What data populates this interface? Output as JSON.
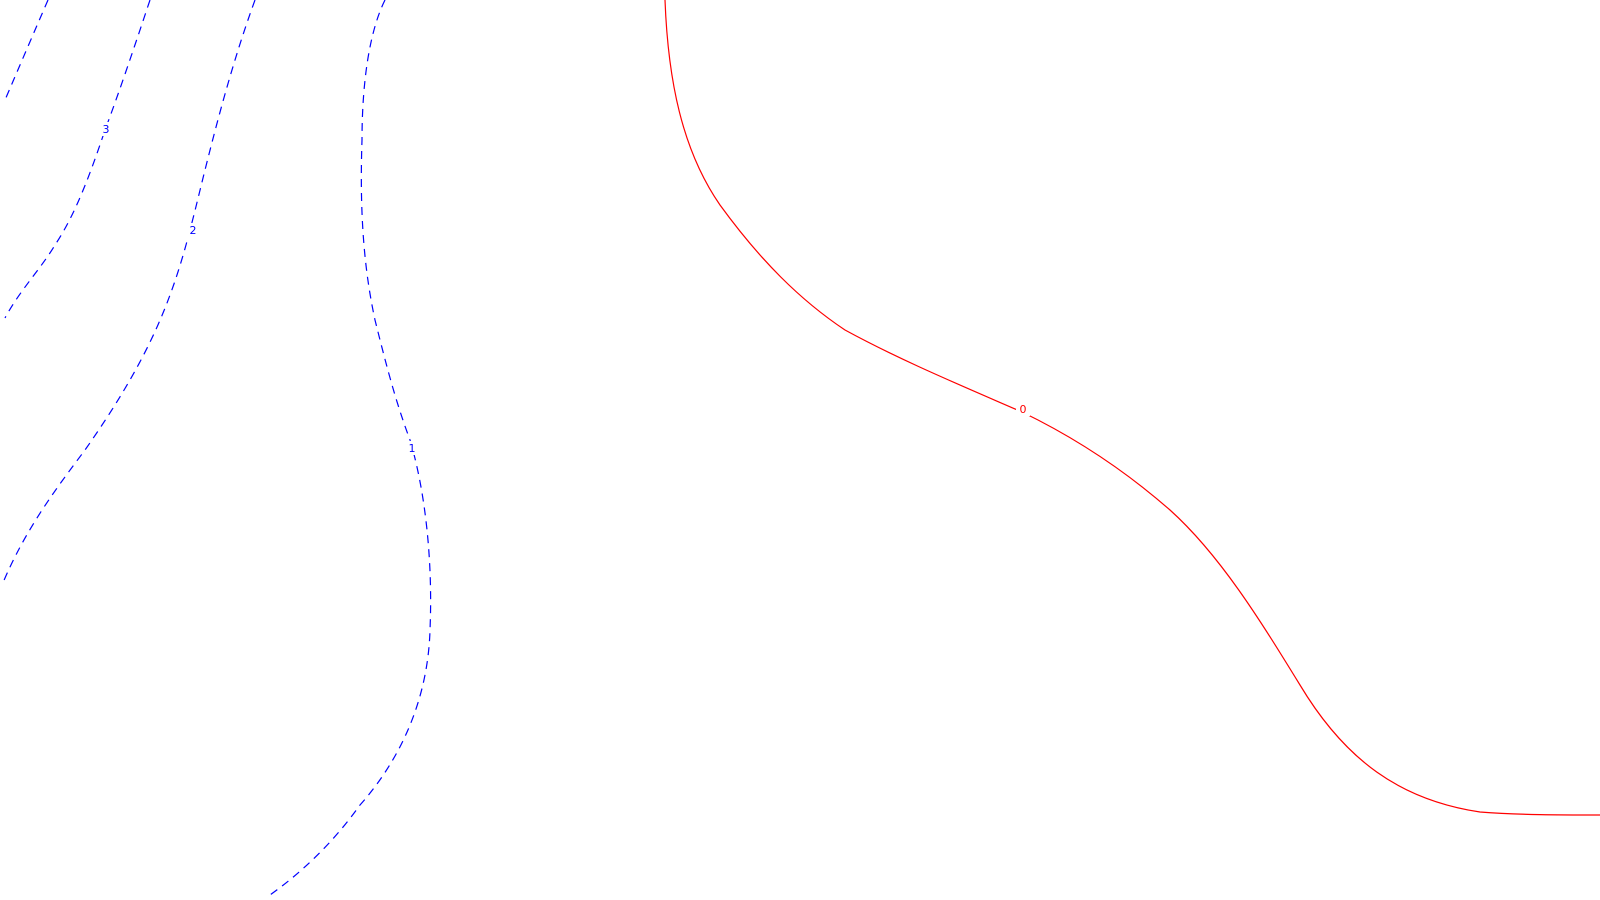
{
  "contours": [
    {
      "id": "contour-0",
      "label": "0",
      "color": "#ff0000",
      "style": "solid"
    },
    {
      "id": "contour-1",
      "label": "1",
      "color": "#0000ff",
      "style": "dashed"
    },
    {
      "id": "contour-2",
      "label": "2",
      "color": "#0000ff",
      "style": "dashed"
    },
    {
      "id": "contour-3",
      "label": "3",
      "color": "#0000ff",
      "style": "dashed"
    }
  ]
}
